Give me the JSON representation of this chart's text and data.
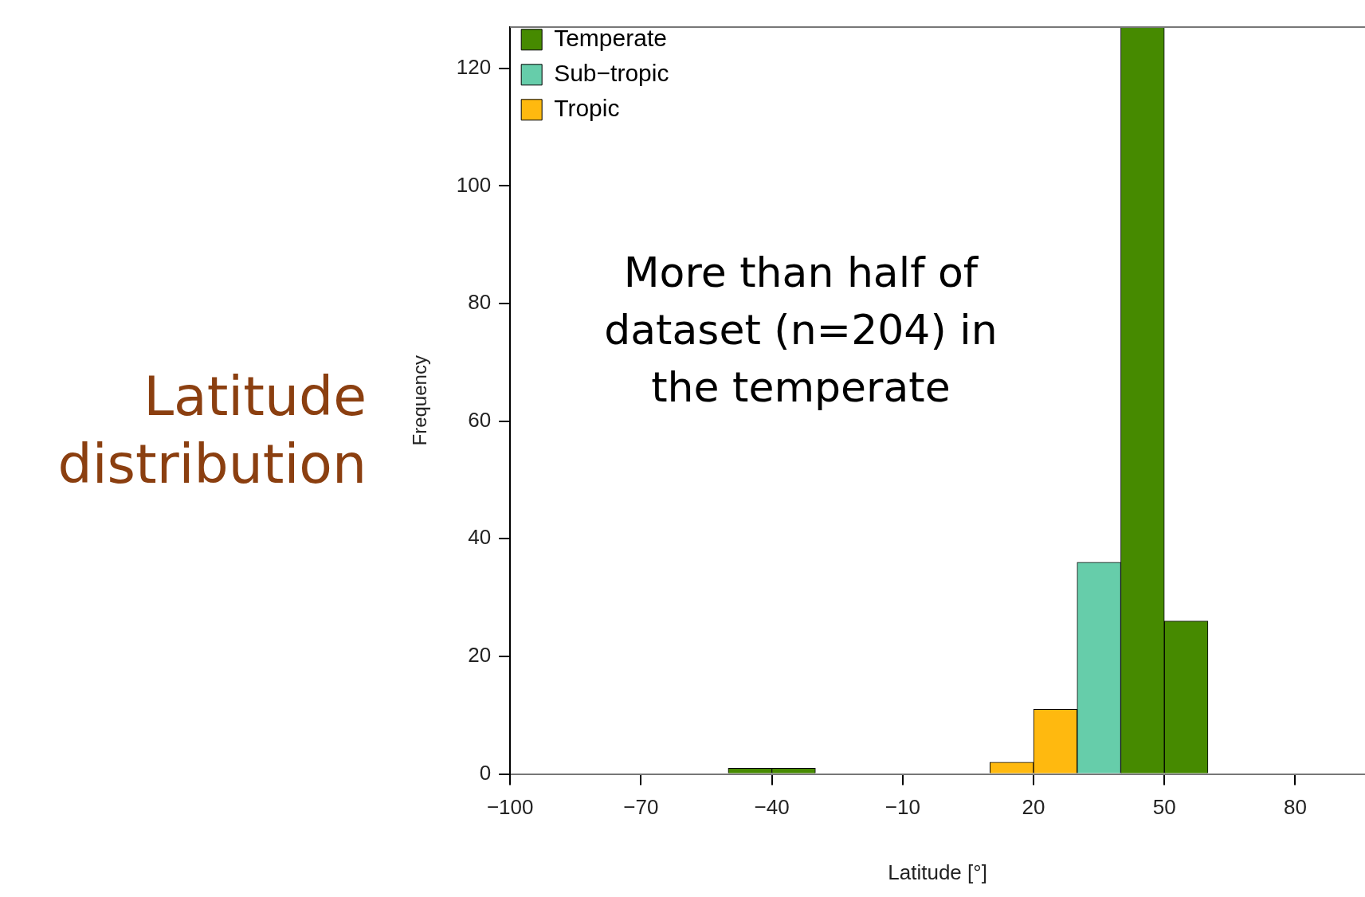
{
  "chart_data": {
    "type": "histogram",
    "title": "Latitude distribution",
    "xlabel": "Latitude [°]",
    "ylabel": "Frequency",
    "annotations": [
      "More than half of\ndataset (n=204) in\nthe temperate"
    ],
    "bins": [
      -50,
      -40,
      -30,
      -20,
      -10,
      0,
      10,
      20,
      30,
      40,
      50,
      60
    ],
    "series": [
      {
        "name": "Temperate",
        "color": "#468a00",
        "values": [
          1,
          1,
          null,
          null,
          null,
          null,
          null,
          null,
          null,
          127,
          26
        ]
      },
      {
        "name": "Sub−tropic",
        "color": "#66cdaa",
        "values": [
          null,
          null,
          null,
          null,
          null,
          null,
          null,
          null,
          36,
          null,
          null
        ]
      },
      {
        "name": "Tropic",
        "color": "#ffb90f",
        "values": [
          null,
          null,
          null,
          null,
          null,
          null,
          2,
          11,
          null,
          null,
          null
        ]
      }
    ],
    "xlim": [
      -100,
      96
    ],
    "xticks": [
      -100,
      -70,
      -40,
      -10,
      20,
      50,
      80
    ],
    "ylim": [
      0,
      127
    ],
    "yticks": [
      0,
      20,
      40,
      60,
      80,
      100,
      120
    ],
    "grid": false,
    "legend": "top left"
  }
}
